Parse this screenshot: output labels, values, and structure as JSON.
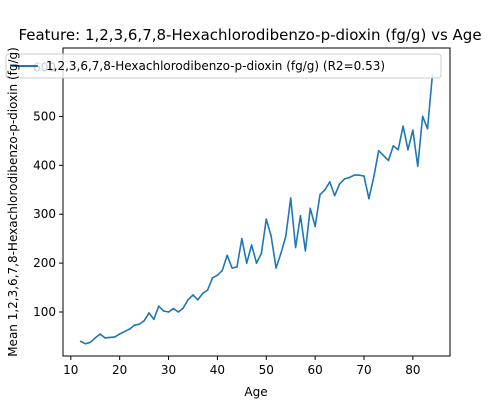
{
  "chart_data": {
    "type": "line",
    "title": "Feature: 1,2,3,6,7,8-Hexachlorodibenzo-p-dioxin (fg/g) vs Age",
    "xlabel": "Age",
    "ylabel": "Mean 1,2,3,6,7,8-Hexachlorodibenzo-p-dioxin (fg/g)",
    "xlim": [
      8.4,
      87.6
    ],
    "ylim": [
      10,
      640
    ],
    "xticks": [
      10,
      20,
      30,
      40,
      50,
      60,
      70,
      80
    ],
    "yticks": [
      100,
      200,
      300,
      400,
      500,
      600
    ],
    "grid": false,
    "legend_location": "top-left",
    "series": [
      {
        "name": "1,2,3,6,7,8-Hexachlorodibenzo-p-dioxin (fg/g) (R2=0.53)",
        "color": "#1f77b4",
        "x": [
          12,
          13,
          14,
          15,
          16,
          17,
          18,
          19,
          20,
          21,
          22,
          23,
          24,
          25,
          26,
          27,
          28,
          29,
          30,
          31,
          32,
          33,
          34,
          35,
          36,
          37,
          38,
          39,
          40,
          41,
          42,
          43,
          44,
          45,
          46,
          47,
          48,
          49,
          50,
          51,
          52,
          53,
          54,
          55,
          56,
          57,
          58,
          59,
          60,
          61,
          62,
          63,
          64,
          65,
          66,
          67,
          68,
          69,
          70,
          71,
          72,
          73,
          74,
          75,
          76,
          77,
          78,
          79,
          80,
          81,
          82,
          83,
          84
        ],
        "values": [
          40,
          35,
          38,
          47,
          55,
          47,
          48,
          49,
          55,
          60,
          65,
          73,
          75,
          82,
          98,
          85,
          112,
          102,
          100,
          107,
          100,
          108,
          125,
          135,
          125,
          138,
          145,
          170,
          175,
          185,
          216,
          190,
          192,
          250,
          200,
          237,
          200,
          220,
          290,
          255,
          190,
          220,
          255,
          333,
          232,
          297,
          225,
          312,
          275,
          340,
          350,
          366,
          338,
          362,
          372,
          375,
          380,
          380,
          378,
          332,
          376,
          430,
          420,
          410,
          440,
          432,
          480,
          432,
          472,
          398,
          500,
          475,
          585
        ]
      }
    ]
  }
}
